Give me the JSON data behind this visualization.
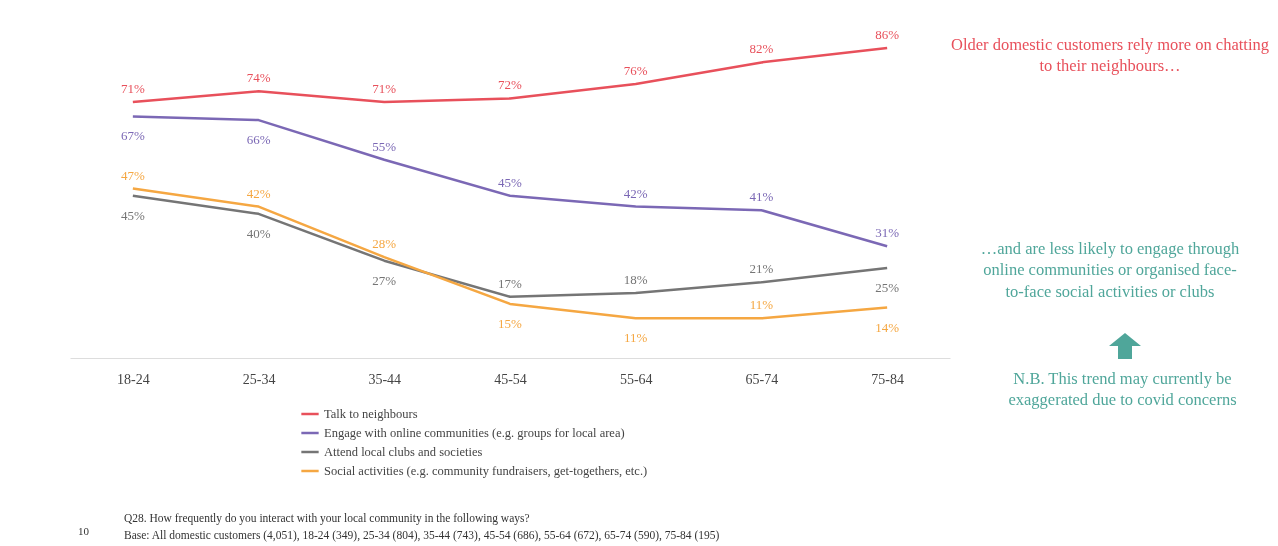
{
  "chart_data": {
    "type": "line",
    "categories": [
      "18-24",
      "25-34",
      "35-44",
      "45-54",
      "55-64",
      "65-74",
      "75-84"
    ],
    "series": [
      {
        "name": "Talk to neighbours",
        "color": "#e8505b",
        "values": [
          71,
          74,
          71,
          72,
          76,
          82,
          86
        ],
        "value_labels": [
          "71%",
          "74%",
          "71%",
          "72%",
          "76%",
          "82%",
          "86%"
        ]
      },
      {
        "name": "Engage with online communities (e.g. groups for local area)",
        "color": "#7b68b5",
        "values": [
          67,
          66,
          55,
          45,
          42,
          41,
          31
        ],
        "value_labels": [
          "67%",
          "66%",
          "55%",
          "45%",
          "42%",
          "41%",
          "31%"
        ]
      },
      {
        "name": "Attend local clubs and societies",
        "color": "#757575",
        "values": [
          45,
          40,
          27,
          17,
          18,
          21,
          25
        ],
        "value_labels": [
          "45%",
          "40%",
          "27%",
          "17%",
          "18%",
          "21%",
          "25%"
        ]
      },
      {
        "name": "Social activities (e.g. community fundraisers, get-togethers, etc.)",
        "color": "#f5a742",
        "values": [
          47,
          42,
          28,
          15,
          11,
          11,
          14
        ],
        "value_labels": [
          "47%",
          "42%",
          "28%",
          "15%",
          "11%",
          "11%",
          "14%"
        ]
      }
    ],
    "legend": "bottom",
    "annotations": [
      "Older domestic customers rely more on chatting to their neighbours…",
      "…and are less likely to engage through online communities or organised face-to-face social activities or clubs",
      "N.B. This trend may currently be exaggerated due to covid concerns",
      "10",
      "Q28. How frequently do you interact with your local community in the following ways?",
      "Base: All domestic customers (4,051), 18-24 (349), 25-34 (804), 35-44 (743), 45-54 (686), 55-64 (672), 65-74 (590), 75-84 (195)"
    ]
  }
}
